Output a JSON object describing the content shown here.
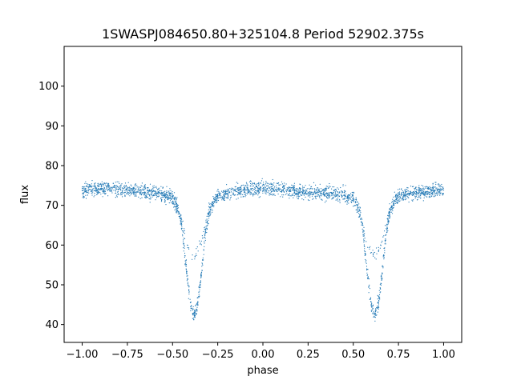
{
  "chart_data": {
    "type": "scatter",
    "title": "1SWASPJ084650.80+325104.8 Period 52902.375s",
    "xlabel": "phase",
    "ylabel": "flux",
    "xlim": [
      -1.1,
      1.1
    ],
    "ylim": [
      35.5,
      110
    ],
    "xticks": [
      -1.0,
      -0.75,
      -0.5,
      -0.25,
      0.0,
      0.25,
      0.5,
      0.75,
      1.0
    ],
    "xtick_labels": [
      "−1.00",
      "−0.75",
      "−0.50",
      "−0.25",
      "0.00",
      "0.25",
      "0.50",
      "0.75",
      "1.00"
    ],
    "yticks": [
      40,
      50,
      60,
      70,
      80,
      90,
      100
    ],
    "ytick_labels": [
      "40",
      "50",
      "60",
      "70",
      "80",
      "90",
      "100"
    ],
    "grid": false,
    "marker_color": "#1f77b4",
    "series": [
      {
        "x": [
          -1.0,
          -0.95,
          -0.9,
          -0.85,
          -0.8,
          -0.75,
          -0.7,
          -0.65,
          -0.6,
          -0.55,
          -0.5,
          -0.475,
          -0.45,
          -0.425,
          -0.4,
          -0.38,
          -0.36,
          -0.34,
          -0.32,
          -0.3,
          -0.275,
          -0.25,
          -0.2,
          -0.15,
          -0.1,
          -0.05,
          0.0,
          0.05,
          0.1,
          0.15,
          0.2,
          0.25,
          0.3,
          0.35,
          0.4,
          0.45,
          0.5,
          0.525,
          0.55,
          0.575,
          0.6,
          0.62,
          0.64,
          0.66,
          0.68,
          0.7,
          0.725,
          0.75,
          0.8,
          0.85,
          0.9,
          0.95,
          1.0
        ],
        "y": [
          73.8,
          74.0,
          74.2,
          74.3,
          74.0,
          73.8,
          73.5,
          73.2,
          73.0,
          72.8,
          72.0,
          70.0,
          65.5,
          54.0,
          44.5,
          42.5,
          45.5,
          53.0,
          62.5,
          68.0,
          71.0,
          72.5,
          73.0,
          73.5,
          73.8,
          74.0,
          74.2,
          74.3,
          74.0,
          73.8,
          73.5,
          73.3,
          73.2,
          73.0,
          72.8,
          72.6,
          72.0,
          70.0,
          65.5,
          54.0,
          44.5,
          42.5,
          45.5,
          53.0,
          62.5,
          68.0,
          71.0,
          72.5,
          73.0,
          73.3,
          73.5,
          73.7,
          73.8
        ]
      },
      {
        "x": [
          -0.55,
          -0.5,
          -0.47,
          -0.44,
          -0.41,
          -0.39,
          -0.37,
          -0.34,
          -0.31,
          -0.28,
          -0.25,
          0.45,
          0.5,
          0.53,
          0.56,
          0.59,
          0.61,
          0.63,
          0.66,
          0.69,
          0.72,
          0.75
        ],
        "y": [
          72.5,
          71.0,
          68.5,
          63.5,
          59.0,
          57.5,
          57.8,
          61.0,
          66.5,
          70.0,
          72.0,
          72.5,
          71.0,
          68.5,
          63.5,
          59.0,
          57.5,
          57.8,
          61.0,
          66.5,
          70.0,
          72.0
        ]
      }
    ]
  }
}
